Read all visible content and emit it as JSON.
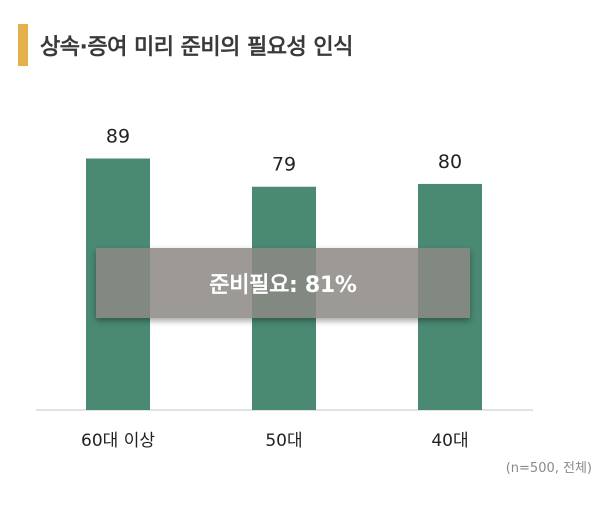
{
  "title": "상속·증여 미리 준비의 필요성 인식",
  "colors": {
    "bar": "#4A8A73",
    "title_accent": "#E3B04B",
    "badge_bg": "#8C8884"
  },
  "badge_text": "준비필요:  81%",
  "note": "(n=500, 전체)",
  "chart_data": {
    "type": "bar",
    "categories": [
      "60대 이상",
      "50대",
      "40대"
    ],
    "values": [
      89,
      79,
      80
    ],
    "ylim": [
      0,
      100
    ],
    "grid": false,
    "data_labels": true
  }
}
